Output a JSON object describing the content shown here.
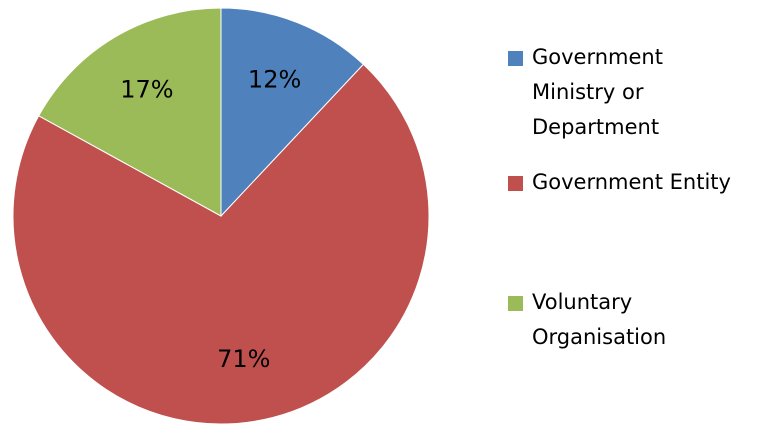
{
  "chart_data": {
    "type": "pie",
    "categories": [
      "Government Ministry or Department",
      "Government Entity",
      "Voluntary Organisation"
    ],
    "values": [
      12,
      71,
      17
    ],
    "value_labels": [
      "12%",
      "71%",
      "17%"
    ],
    "colors": [
      "#4f81bd",
      "#c0504d",
      "#9bbb59"
    ]
  }
}
